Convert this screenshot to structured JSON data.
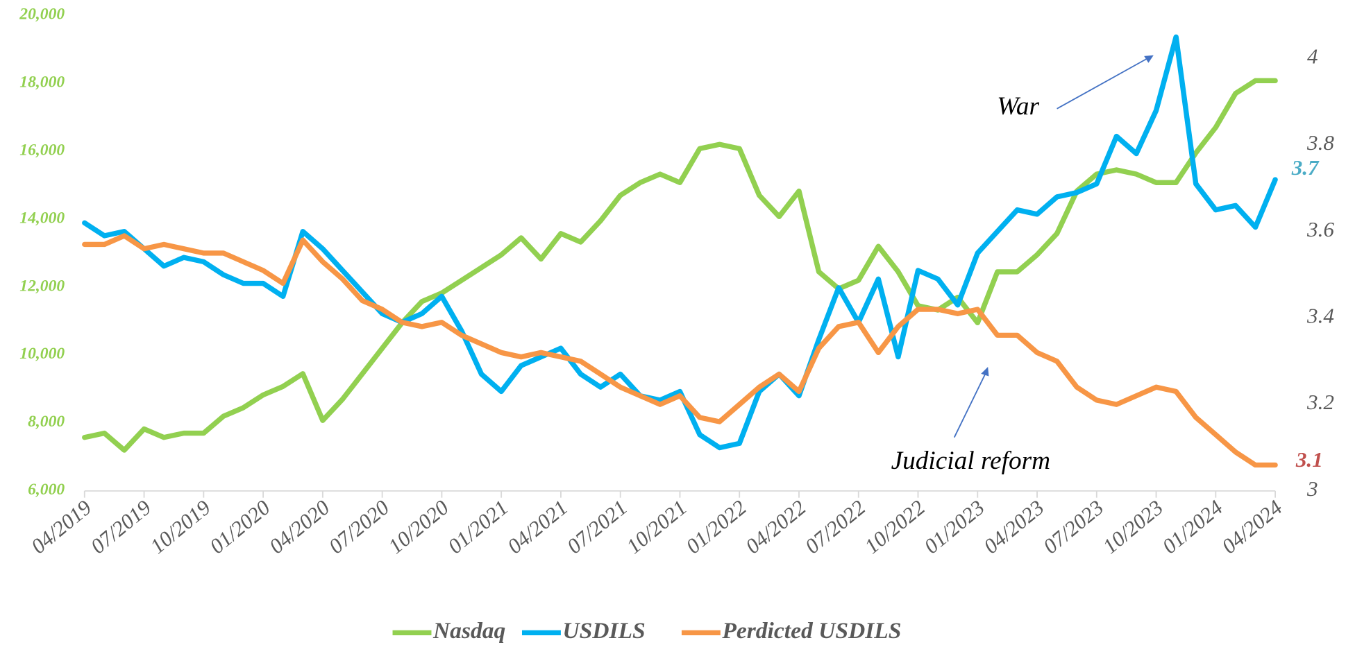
{
  "chart_data": {
    "type": "line",
    "categories": [
      "04/2019",
      null,
      null,
      "07/2019",
      null,
      null,
      "10/2019",
      null,
      null,
      "01/2020",
      null,
      null,
      "04/2020",
      null,
      null,
      "07/2020",
      null,
      null,
      "10/2020",
      null,
      null,
      "01/2021",
      null,
      null,
      "04/2021",
      null,
      null,
      "07/2021",
      null,
      null,
      "10/2021",
      null,
      null,
      "01/2022",
      null,
      null,
      "04/2022",
      null,
      null,
      "07/2022",
      null,
      null,
      "10/2022",
      null,
      null,
      "01/2023",
      null,
      null,
      "04/2023",
      null,
      null,
      "07/2023",
      null,
      null,
      "10/2023",
      null,
      null,
      "01/2024",
      null,
      null,
      "04/2024"
    ],
    "series": [
      {
        "name": "Nasdaq",
        "color": "#92d050",
        "values": [
          7575,
          7700,
          7200,
          7825,
          7575,
          7700,
          7700,
          8200,
          8450,
          8825,
          9075,
          9450,
          8075,
          8700,
          9450,
          10200,
          10950,
          11575,
          11825,
          12200,
          12575,
          12950,
          13450,
          12825,
          13575,
          13325,
          13950,
          14700,
          15075,
          15325,
          15075,
          16075,
          16200,
          16075,
          14700,
          14075,
          14825,
          12450,
          11950,
          12200,
          13200,
          12450,
          11450,
          11325,
          11700,
          10950,
          12450,
          12450,
          12950,
          13575,
          14825,
          15325,
          15450,
          15325,
          15075,
          15075,
          15950,
          16700,
          17700,
          18075,
          18075
        ]
      },
      {
        "name": "USDILS",
        "color": "#00b0f0",
        "axis": "y2",
        "values": [
          3.62,
          3.59,
          3.6,
          3.56,
          3.52,
          3.54,
          3.53,
          3.5,
          3.48,
          3.48,
          3.45,
          3.6,
          3.56,
          3.51,
          3.46,
          3.41,
          3.39,
          3.41,
          3.45,
          3.37,
          3.27,
          3.23,
          3.29,
          3.31,
          3.33,
          3.27,
          3.24,
          3.27,
          3.22,
          3.21,
          3.23,
          3.13,
          3.1,
          3.11,
          3.23,
          3.27,
          3.22,
          3.35,
          3.47,
          3.39,
          3.49,
          3.31,
          3.51,
          3.49,
          3.43,
          3.55,
          3.6,
          3.65,
          3.64,
          3.68,
          3.69,
          3.71,
          3.82,
          3.78,
          3.88,
          4.05,
          3.71,
          3.65,
          3.66,
          3.61,
          3.72
        ]
      },
      {
        "name": "Perdicted USDILS",
        "color": "#f79646",
        "axis": "y2",
        "values": [
          3.57,
          3.57,
          3.59,
          3.56,
          3.57,
          3.56,
          3.55,
          3.55,
          3.53,
          3.51,
          3.48,
          3.58,
          3.53,
          3.49,
          3.44,
          3.42,
          3.39,
          3.38,
          3.39,
          3.36,
          3.34,
          3.32,
          3.31,
          3.32,
          3.31,
          3.3,
          3.27,
          3.24,
          3.22,
          3.2,
          3.22,
          3.17,
          3.16,
          3.2,
          3.24,
          3.27,
          3.23,
          3.33,
          3.38,
          3.39,
          3.32,
          3.38,
          3.42,
          3.42,
          3.41,
          3.42,
          3.36,
          3.36,
          3.32,
          3.3,
          3.24,
          3.21,
          3.2,
          3.22,
          3.24,
          3.23,
          3.17,
          3.13,
          3.09,
          3.06,
          3.06
        ]
      }
    ],
    "ylim": [
      6000,
      20000
    ],
    "yticks": [
      {
        "value": 6000,
        "label": "6,000"
      },
      {
        "value": 8000,
        "label": "8,000"
      },
      {
        "value": 10000,
        "label": "10,000"
      },
      {
        "value": 12000,
        "label": "12,000"
      },
      {
        "value": 14000,
        "label": "14,000"
      },
      {
        "value": 16000,
        "label": "16,000"
      },
      {
        "value": 18000,
        "label": "18,000"
      },
      {
        "value": 20000,
        "label": "20,000"
      }
    ],
    "y2lim": [
      3,
      4.1
    ],
    "y2ticks": [
      3,
      3.2,
      3.4,
      3.6,
      3.8,
      4
    ],
    "ytick_color": "#92d050",
    "legend": "bottom",
    "annotations": [
      {
        "text": "War"
      },
      {
        "text": "Judicial reform"
      },
      {
        "text": "3.7",
        "color": "#4bacc6"
      },
      {
        "text": "3.1",
        "color": "#c0504d"
      }
    ]
  }
}
